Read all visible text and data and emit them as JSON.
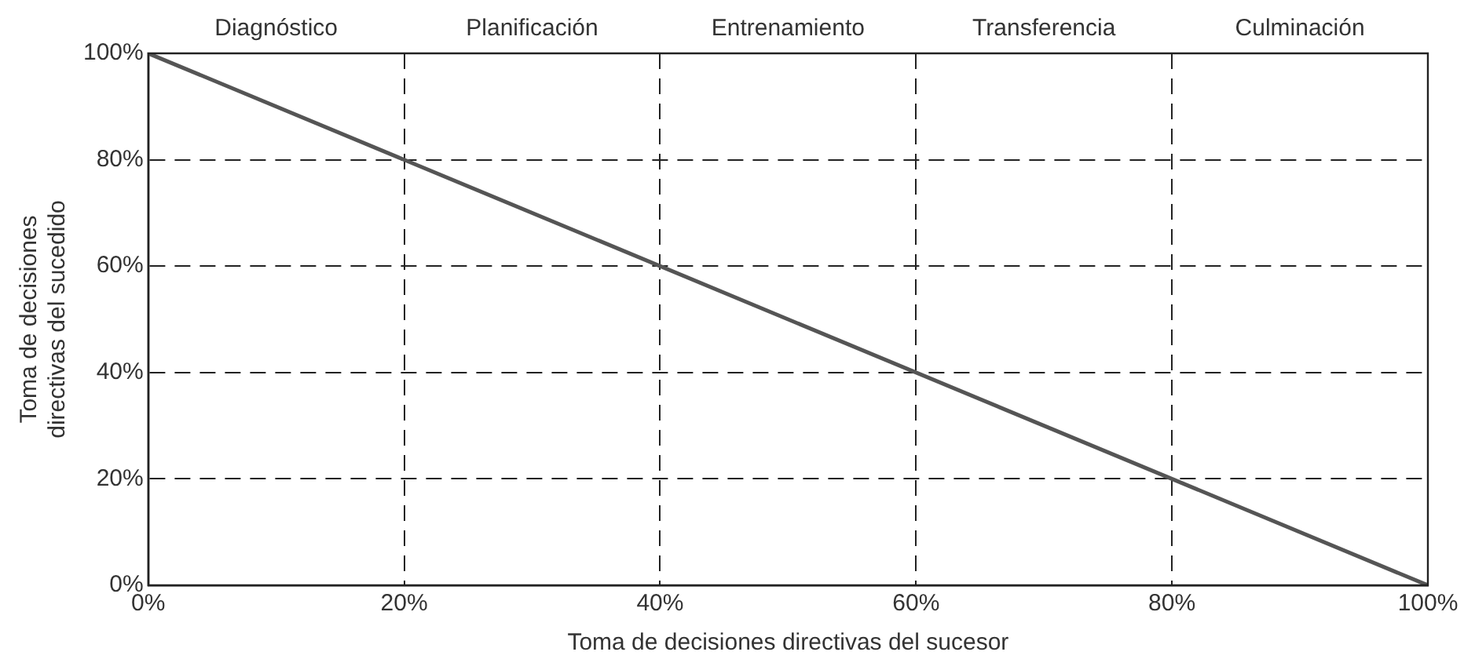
{
  "chart_data": {
    "type": "line",
    "xlabel": "Toma de decisiones directivas del sucesor",
    "ylabel": "Toma de decisiones\ndirectivas del sucedido",
    "x": [
      0,
      100
    ],
    "series": [
      {
        "color": "#555555",
        "values": [
          100,
          0
        ]
      }
    ],
    "xlim": [
      0,
      100
    ],
    "ylim": [
      0,
      100
    ],
    "xticks": [
      {
        "value": 0,
        "label": "0%"
      },
      {
        "value": 20,
        "label": "20%"
      },
      {
        "value": 40,
        "label": "40%"
      },
      {
        "value": 60,
        "label": "60%"
      },
      {
        "value": 80,
        "label": "80%"
      },
      {
        "value": 100,
        "label": "100%"
      }
    ],
    "yticks": [
      {
        "value": 0,
        "label": "0%"
      },
      {
        "value": 20,
        "label": "20%"
      },
      {
        "value": 40,
        "label": "40%"
      },
      {
        "value": 60,
        "label": "60%"
      },
      {
        "value": 80,
        "label": "80%"
      },
      {
        "value": 100,
        "label": "100%"
      }
    ],
    "annotations": [
      "Diagnóstico",
      "Planificación",
      "Entrenamiento",
      "Transferencia",
      "Culminación"
    ],
    "grid": true,
    "legend": false,
    "marker": "none",
    "line_style": "solid"
  }
}
